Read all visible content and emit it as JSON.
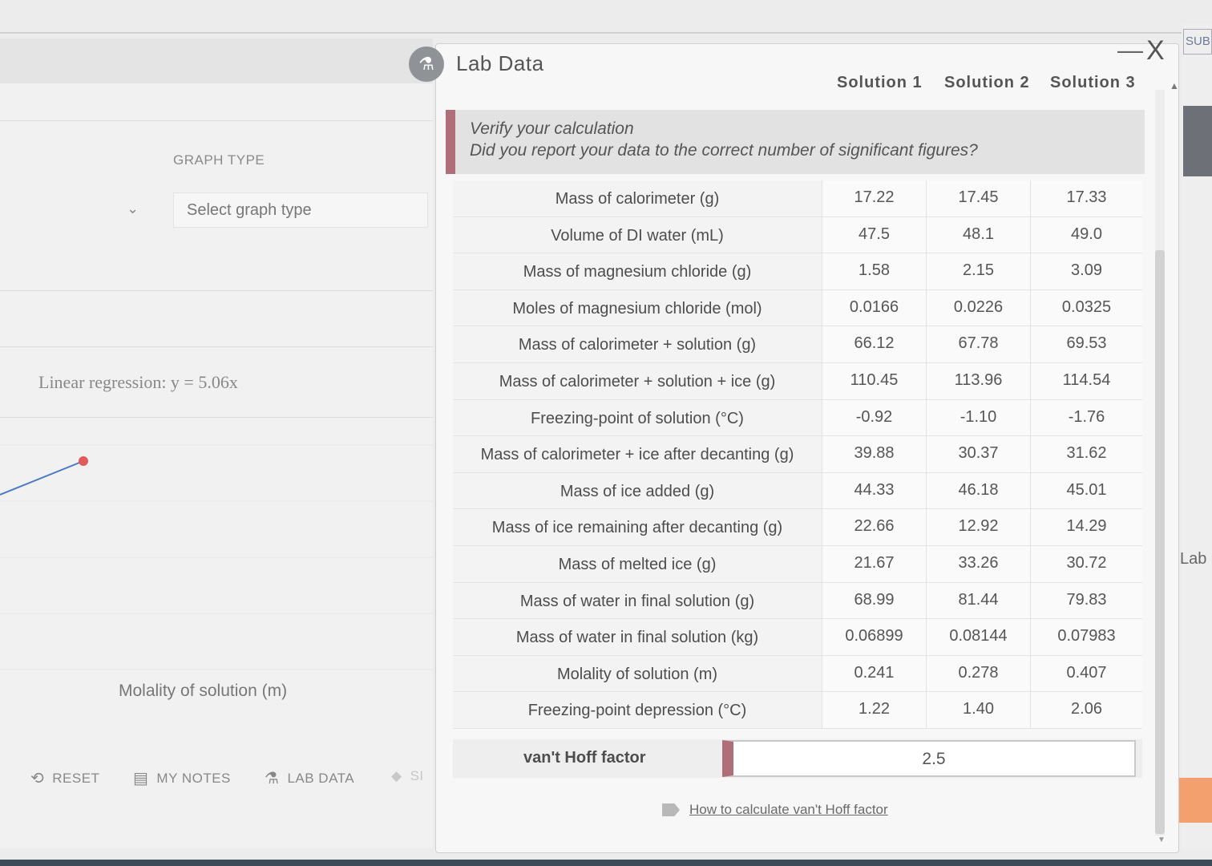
{
  "background": {
    "graph_type_label": "GRAPH TYPE",
    "graph_select_placeholder": "Select graph type",
    "regression_text": "Linear regression: y = 5.06x",
    "x_axis_label": "Molality of solution (m)",
    "footer": {
      "reset": "RESET",
      "my_notes": "MY NOTES",
      "lab_data": "LAB DATA",
      "partial": "SI"
    },
    "side_button": "SUB",
    "side_lab": "Lab"
  },
  "modal": {
    "title": "Lab Data",
    "minimize": "—",
    "close": "X",
    "columns": [
      "Solution 1",
      "Solution 2",
      "Solution 3"
    ],
    "banner": {
      "line1": "Verify your calculation",
      "line2": "Did you report your data to the correct number of significant figures?"
    },
    "rows": [
      {
        "label": "Mass of calorimeter (g)",
        "values": [
          "17.22",
          "17.45",
          "17.33"
        ]
      },
      {
        "label": "Volume of DI water (mL)",
        "values": [
          "47.5",
          "48.1",
          "49.0"
        ]
      },
      {
        "label": "Mass of magnesium chloride (g)",
        "values": [
          "1.58",
          "2.15",
          "3.09"
        ]
      },
      {
        "label": "Moles of magnesium chloride (mol)",
        "values": [
          "0.0166",
          "0.0226",
          "0.0325"
        ]
      },
      {
        "label": "Mass of calorimeter + solution (g)",
        "values": [
          "66.12",
          "67.78",
          "69.53"
        ]
      },
      {
        "label": "Mass of calorimeter + solution + ice (g)",
        "values": [
          "110.45",
          "113.96",
          "114.54"
        ]
      },
      {
        "label": "Freezing-point of solution (°C)",
        "values": [
          "-0.92",
          "-1.10",
          "-1.76"
        ]
      },
      {
        "label": "Mass of calorimeter + ice after decanting (g)",
        "values": [
          "39.88",
          "30.37",
          "31.62"
        ]
      },
      {
        "label": "Mass of ice added (g)",
        "values": [
          "44.33",
          "46.18",
          "45.01"
        ]
      },
      {
        "label": "Mass of ice remaining after decanting (g)",
        "values": [
          "22.66",
          "12.92",
          "14.29"
        ]
      },
      {
        "label": "Mass of melted ice (g)",
        "values": [
          "21.67",
          "33.26",
          "30.72"
        ]
      },
      {
        "label": "Mass of water in final solution (g)",
        "values": [
          "68.99",
          "81.44",
          "79.83"
        ]
      },
      {
        "label": "Mass of water in final solution (kg)",
        "values": [
          "0.06899",
          "0.08144",
          "0.07983"
        ]
      },
      {
        "label": "Molality of solution (m)",
        "values": [
          "0.241",
          "0.278",
          "0.407"
        ]
      },
      {
        "label": "Freezing-point depression (°C)",
        "values": [
          "1.22",
          "1.40",
          "2.06"
        ]
      }
    ],
    "vant_hoff_label": "van't Hoff factor",
    "vant_hoff_value": "2.5",
    "howto_link": "How to calculate van't Hoff factor"
  },
  "colors": {
    "accent_maroon": "#b06e78",
    "plot_line": "#4a78c8",
    "plot_point": "#e05a5a"
  }
}
